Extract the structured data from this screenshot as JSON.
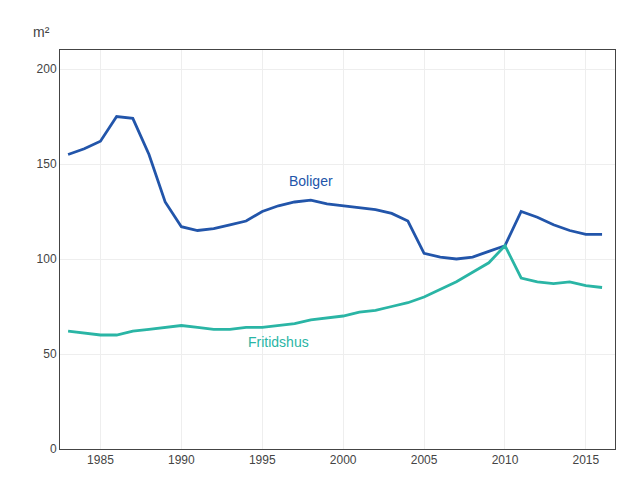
{
  "chart_data": {
    "type": "line",
    "ylabel": "m²",
    "x": [
      1983,
      1984,
      1985,
      1986,
      1987,
      1988,
      1989,
      1990,
      1991,
      1992,
      1993,
      1994,
      1995,
      1996,
      1997,
      1998,
      1999,
      2000,
      2001,
      2002,
      2003,
      2004,
      2005,
      2006,
      2007,
      2008,
      2009,
      2010,
      2011,
      2012,
      2013,
      2014,
      2015,
      2016
    ],
    "series": [
      {
        "color": "#2255aa",
        "values": [
          155,
          158,
          162,
          175,
          174,
          155,
          130,
          117,
          115,
          116,
          118,
          120,
          125,
          128,
          130,
          131,
          129,
          128,
          127,
          126,
          124,
          120,
          103,
          101,
          100,
          101,
          104,
          107,
          125,
          122,
          118,
          115,
          113,
          113
        ]
      },
      {
        "color": "#2ab5a5",
        "values": [
          62,
          61,
          60,
          60,
          62,
          63,
          64,
          65,
          64,
          63,
          63,
          64,
          64,
          65,
          66,
          68,
          69,
          70,
          72,
          73,
          75,
          77,
          80,
          84,
          88,
          93,
          98,
          107,
          90,
          88,
          87,
          88,
          86,
          85
        ]
      }
    ],
    "annotations": [
      {
        "text": "Boliger",
        "x": 1996.5,
        "y": 136,
        "color": "#2255aa"
      },
      {
        "text": "Fritidshus",
        "x": 1994.0,
        "y": 51,
        "color": "#2ab5a5"
      }
    ],
    "xlim": [
      1982.5,
      2016.8
    ],
    "xticks": [
      1985,
      1990,
      1995,
      2000,
      2005,
      2010,
      2015
    ],
    "ylim": [
      0,
      210
    ],
    "yticks": [
      0,
      50,
      100,
      150,
      200
    ],
    "grid": true
  }
}
